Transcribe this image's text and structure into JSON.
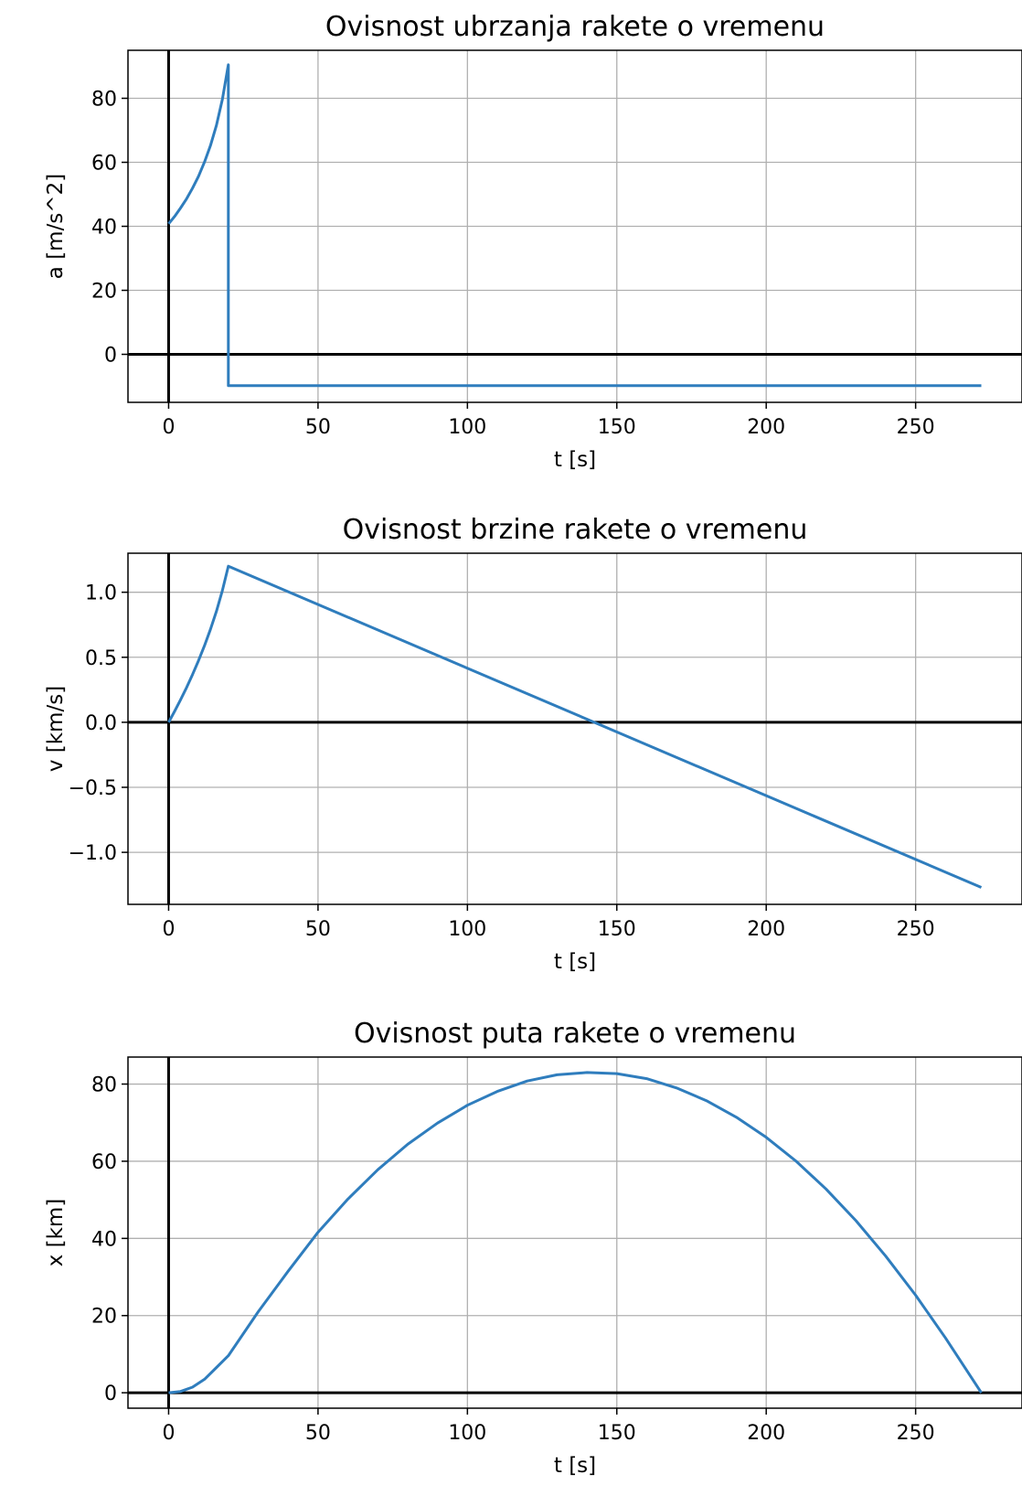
{
  "chart_data": [
    {
      "type": "line",
      "title": "Ovisnost ubrzanja rakete o vremenu",
      "xlabel": "t [s]",
      "ylabel": "a [m/s^2]",
      "xlim": [
        -13.6,
        285.6
      ],
      "ylim": [
        -15.0,
        95.0
      ],
      "xticks": [
        0,
        50,
        100,
        150,
        200,
        250
      ],
      "yticks": [
        0,
        20,
        40,
        60,
        80
      ],
      "xtick_labels": [
        "0",
        "50",
        "100",
        "150",
        "200",
        "250"
      ],
      "ytick_labels": [
        "0",
        "20",
        "40",
        "60",
        "80"
      ],
      "grid": true,
      "line_color": "#2f7dbd",
      "series": [
        {
          "x": [
            0,
            2,
            4,
            6,
            8,
            10,
            12,
            14,
            16,
            18,
            20,
            20,
            272
          ],
          "y": [
            40.8,
            43.1,
            45.7,
            48.6,
            51.9,
            55.6,
            60.1,
            65.2,
            71.6,
            79.7,
            90.5,
            -9.8,
            -9.8
          ]
        }
      ]
    },
    {
      "type": "line",
      "title": "Ovisnost brzine rakete o vremenu",
      "xlabel": "t [s]",
      "ylabel": "v [km/s]",
      "xlim": [
        -13.6,
        285.6
      ],
      "ylim": [
        -1.4,
        1.3
      ],
      "xticks": [
        0,
        50,
        100,
        150,
        200,
        250
      ],
      "yticks": [
        -1.0,
        -0.5,
        0.0,
        0.5,
        1.0
      ],
      "xtick_labels": [
        "0",
        "50",
        "100",
        "150",
        "200",
        "250"
      ],
      "ytick_labels": [
        "−1.0",
        "−0.5",
        "0.0",
        "0.5",
        "1.0"
      ],
      "grid": true,
      "line_color": "#2f7dbd",
      "series": [
        {
          "x": [
            0,
            2,
            4,
            6,
            8,
            10,
            12,
            14,
            16,
            18,
            20,
            272
          ],
          "y": [
            0.0,
            0.084,
            0.173,
            0.267,
            0.367,
            0.473,
            0.589,
            0.714,
            0.854,
            1.014,
            1.2,
            -1.27
          ]
        }
      ]
    },
    {
      "type": "line",
      "title": "Ovisnost puta rakete o vremenu",
      "xlabel": "t [s]",
      "ylabel": "x [km]",
      "xlim": [
        -13.6,
        285.6
      ],
      "ylim": [
        -4.0,
        87.0
      ],
      "xticks": [
        0,
        50,
        100,
        150,
        200,
        250
      ],
      "yticks": [
        0,
        20,
        40,
        60,
        80
      ],
      "xtick_labels": [
        "0",
        "50",
        "100",
        "150",
        "200",
        "250"
      ],
      "ytick_labels": [
        "0",
        "20",
        "40",
        "60",
        "80"
      ],
      "grid": true,
      "line_color": "#2f7dbd",
      "series": [
        {
          "x": [
            0,
            4,
            8,
            12,
            16,
            20,
            30,
            40,
            50,
            60,
            70,
            80,
            90,
            100,
            110,
            120,
            130,
            140,
            150,
            160,
            170,
            180,
            190,
            200,
            210,
            220,
            230,
            240,
            250,
            260,
            272
          ],
          "y": [
            0.0,
            0.34,
            1.44,
            3.48,
            6.55,
            9.6,
            21.0,
            31.5,
            41.6,
            50.2,
            57.8,
            64.4,
            69.9,
            74.5,
            78.1,
            80.8,
            82.4,
            83.0,
            82.7,
            81.4,
            79.0,
            75.7,
            71.4,
            66.2,
            60.0,
            52.8,
            44.6,
            35.4,
            25.3,
            14.2,
            0.0
          ]
        }
      ]
    }
  ]
}
